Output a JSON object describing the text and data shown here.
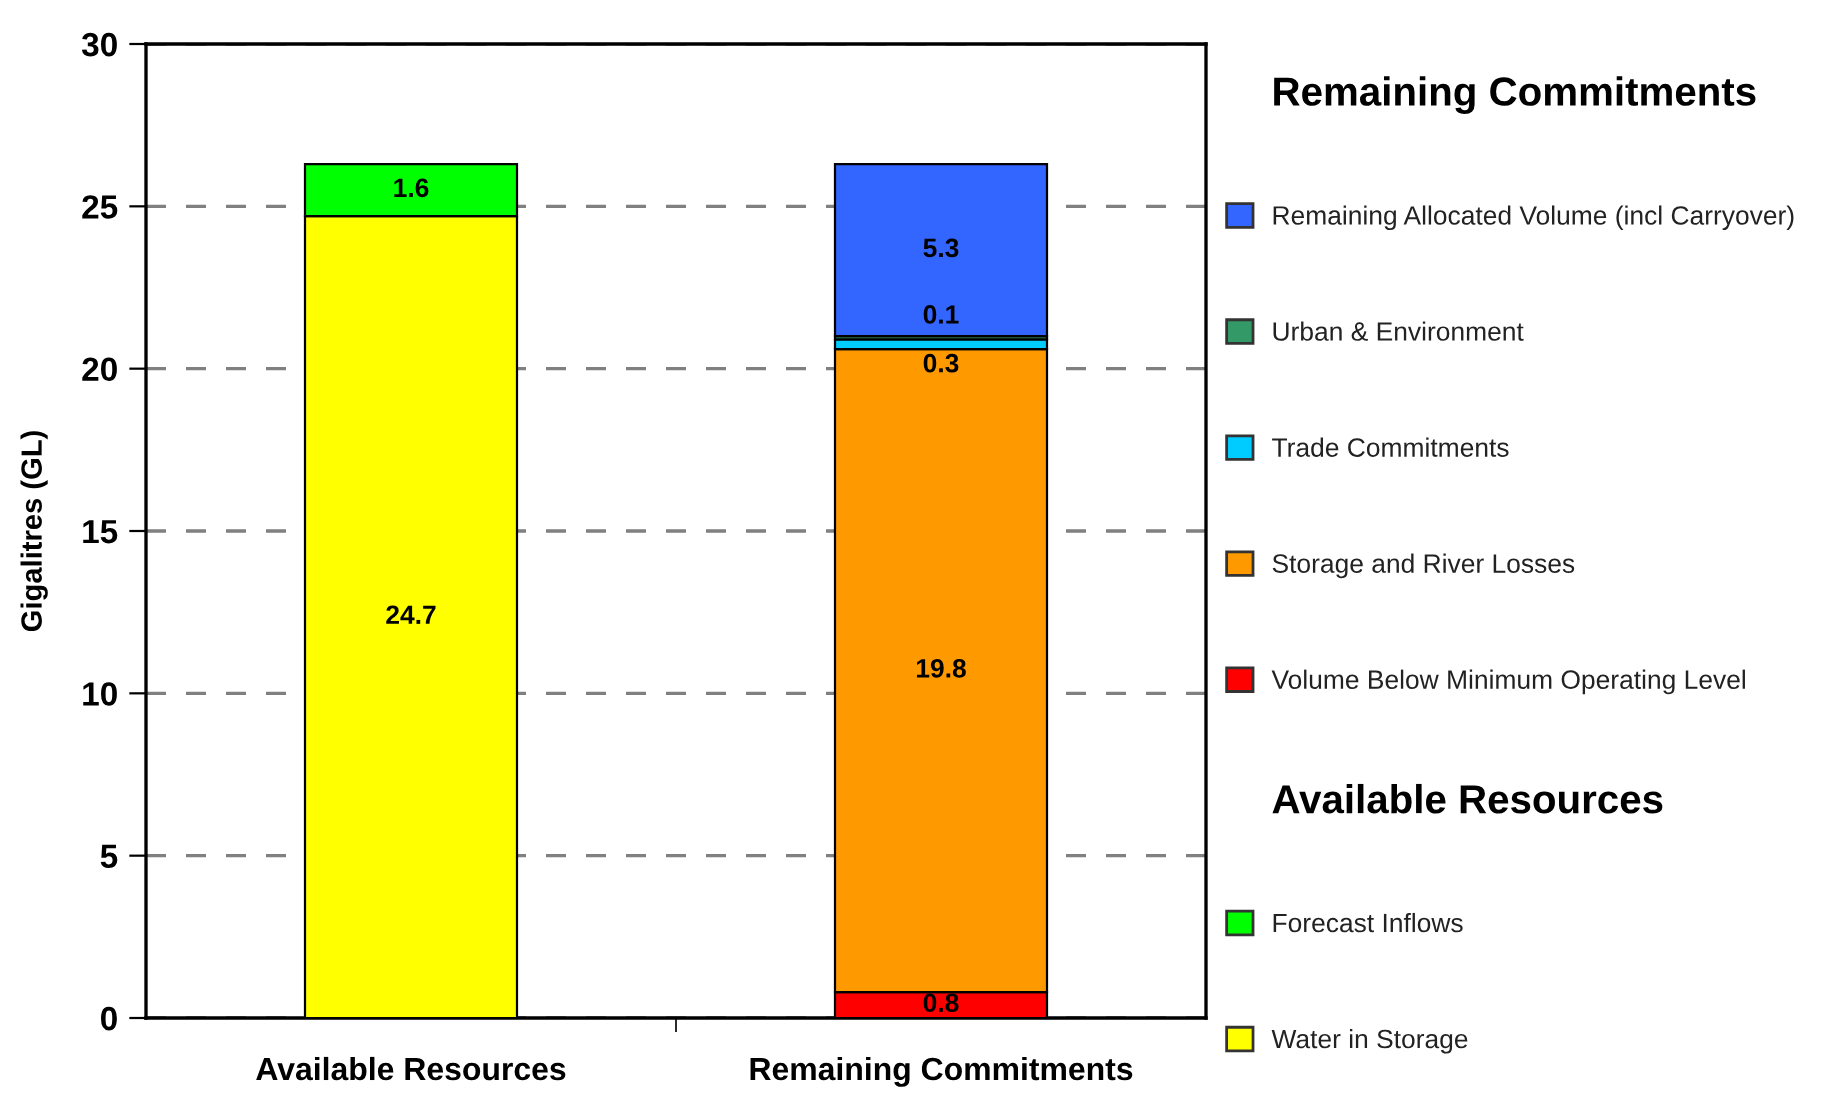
{
  "chart_data": {
    "type": "bar",
    "stacked": true,
    "categories": [
      "Available Resources",
      "Remaining Commitments"
    ],
    "series": [
      {
        "name": "Water in Storage",
        "color": "#ffff00",
        "values": [
          24.7,
          null
        ]
      },
      {
        "name": "Forecast Inflows",
        "color": "#00ff00",
        "values": [
          1.6,
          null
        ]
      },
      {
        "name": "Volume Below Minimum Operating Level",
        "color": "#ff0000",
        "values": [
          null,
          0.8
        ]
      },
      {
        "name": "Storage and River Losses",
        "color": "#ff9900",
        "values": [
          null,
          19.8
        ]
      },
      {
        "name": "Trade Commitments",
        "color": "#00ccff",
        "values": [
          null,
          0.3
        ]
      },
      {
        "name": "Urban & Environment",
        "color": "#339966",
        "values": [
          null,
          0.1
        ]
      },
      {
        "name": "Remaining Allocated Volume (incl Carryover)",
        "color": "#3366ff",
        "values": [
          null,
          5.3
        ]
      }
    ],
    "ylabel": "Gigalitres (GL)",
    "ylim": [
      0,
      30
    ],
    "yticks": [
      0,
      5,
      10,
      15,
      20,
      25,
      30
    ],
    "grid": "y",
    "legend": "right",
    "data_labels": true,
    "annotations": [
      "Remaining Commitments",
      "Available Resources"
    ]
  }
}
